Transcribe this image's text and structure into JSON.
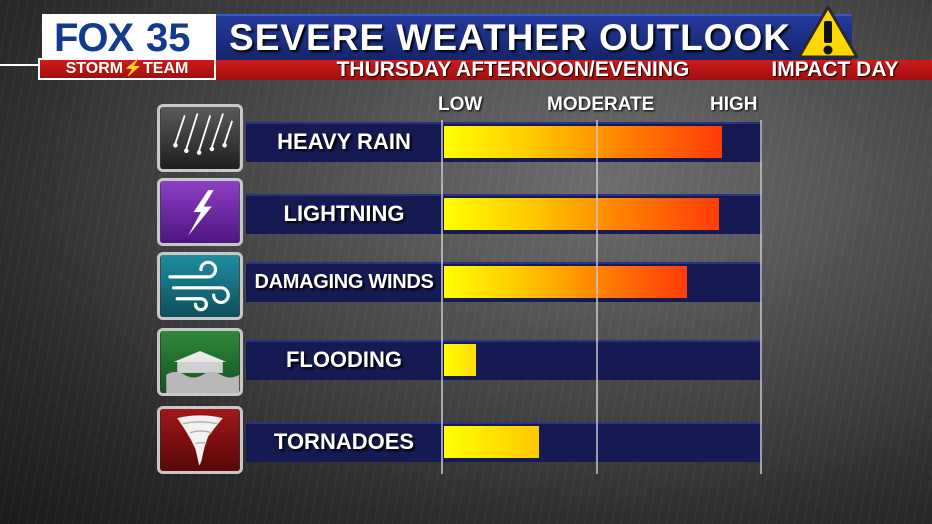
{
  "header": {
    "logo_fox": "FOX",
    "logo_number": "35",
    "logo_team": "STORM⚡TEAM",
    "title": "SEVERE WEATHER OUTLOOK",
    "subtitle": "THURSDAY AFTERNOON/EVENING",
    "impact_label": "IMPACT DAY",
    "warning_icon": "warning-triangle-icon"
  },
  "colors": {
    "title_bar": "#1c2f86",
    "red_bar": "#c01414",
    "track": "#151a52",
    "bar_low": "#ffff00",
    "bar_high": "#ff3b0a"
  },
  "chart_data": {
    "type": "bar",
    "orientation": "horizontal",
    "title": "SEVERE WEATHER OUTLOOK",
    "subtitle": "THURSDAY AFTERNOON/EVENING",
    "scale_labels": [
      "LOW",
      "MODERATE",
      "HIGH"
    ],
    "xlim": [
      0,
      1
    ],
    "grid": true,
    "categories": [
      "HEAVY RAIN",
      "LIGHTNING",
      "DAMAGING WINDS",
      "FLOODING",
      "TORNADOES"
    ],
    "icons": [
      "heavy-rain-icon",
      "lightning-icon",
      "wind-icon",
      "flood-icon",
      "tornado-icon"
    ],
    "values": [
      0.88,
      0.87,
      0.77,
      0.1,
      0.3
    ]
  }
}
